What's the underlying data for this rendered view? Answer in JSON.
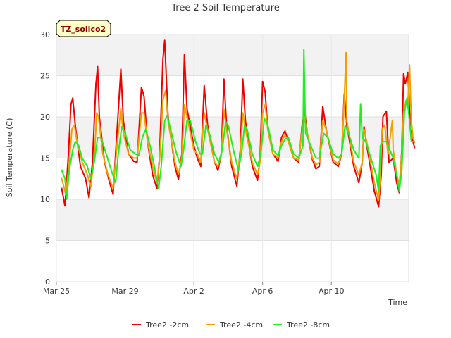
{
  "chart_data": {
    "type": "line",
    "title": "Tree 2 Soil Temperature",
    "xlabel": "Time",
    "ylabel": "Soil Temperature (C)",
    "tag_label": "TZ_soilco2",
    "ylim": [
      0,
      30
    ],
    "yticks": [
      0,
      5,
      10,
      15,
      20,
      25,
      30
    ],
    "xlim": [
      0,
      20.5
    ],
    "xticks": [
      {
        "value": 0,
        "label": "Mar 25"
      },
      {
        "value": 4,
        "label": "Mar 29"
      },
      {
        "value": 8,
        "label": "Apr 2"
      },
      {
        "value": 12,
        "label": "Apr 6"
      },
      {
        "value": 16,
        "label": "Apr 10"
      }
    ],
    "grid": true,
    "legend_position": "bottom",
    "series": [
      {
        "name": "Tree2 -2cm",
        "color": "#ee0000",
        "points": [
          [
            0.3,
            11.4
          ],
          [
            0.5,
            9.2
          ],
          [
            0.7,
            15.5
          ],
          [
            0.85,
            21.5
          ],
          [
            0.95,
            22.3
          ],
          [
            1.1,
            19.0
          ],
          [
            1.4,
            14.0
          ],
          [
            1.7,
            12.5
          ],
          [
            1.9,
            10.2
          ],
          [
            2.1,
            14.5
          ],
          [
            2.3,
            24.0
          ],
          [
            2.4,
            26.1
          ],
          [
            2.5,
            20.0
          ],
          [
            2.8,
            14.5
          ],
          [
            3.1,
            12.0
          ],
          [
            3.3,
            10.6
          ],
          [
            3.55,
            19.0
          ],
          [
            3.75,
            25.8
          ],
          [
            3.9,
            19.5
          ],
          [
            4.2,
            15.5
          ],
          [
            4.5,
            14.6
          ],
          [
            4.7,
            14.5
          ],
          [
            4.95,
            23.6
          ],
          [
            5.1,
            22.5
          ],
          [
            5.3,
            17.0
          ],
          [
            5.6,
            13.0
          ],
          [
            5.85,
            11.3
          ],
          [
            6.0,
            15.0
          ],
          [
            6.2,
            27.0
          ],
          [
            6.3,
            29.3
          ],
          [
            6.5,
            20.0
          ],
          [
            6.9,
            14.0
          ],
          [
            7.1,
            12.4
          ],
          [
            7.3,
            15.5
          ],
          [
            7.45,
            27.6
          ],
          [
            7.6,
            21.0
          ],
          [
            8.0,
            16.5
          ],
          [
            8.2,
            15.0
          ],
          [
            8.4,
            14.0
          ],
          [
            8.6,
            23.8
          ],
          [
            8.8,
            19.0
          ],
          [
            9.2,
            14.5
          ],
          [
            9.4,
            13.5
          ],
          [
            9.6,
            15.5
          ],
          [
            9.75,
            24.6
          ],
          [
            9.9,
            19.0
          ],
          [
            10.2,
            14.0
          ],
          [
            10.5,
            11.6
          ],
          [
            10.7,
            16.0
          ],
          [
            10.85,
            24.6
          ],
          [
            11.0,
            19.5
          ],
          [
            11.4,
            14.0
          ],
          [
            11.7,
            12.3
          ],
          [
            11.85,
            15.0
          ],
          [
            12.0,
            24.3
          ],
          [
            12.15,
            23.0
          ],
          [
            12.3,
            18.5
          ],
          [
            12.6,
            15.5
          ],
          [
            12.9,
            14.6
          ],
          [
            13.1,
            17.5
          ],
          [
            13.3,
            18.3
          ],
          [
            13.5,
            17.0
          ],
          [
            13.8,
            15.0
          ],
          [
            14.1,
            14.5
          ],
          [
            14.3,
            19.0
          ],
          [
            14.45,
            20.7
          ],
          [
            14.6,
            18.0
          ],
          [
            14.9,
            14.8
          ],
          [
            15.1,
            13.7
          ],
          [
            15.3,
            14.0
          ],
          [
            15.5,
            21.3
          ],
          [
            15.7,
            18.5
          ],
          [
            16.1,
            14.5
          ],
          [
            16.4,
            14.0
          ],
          [
            16.6,
            15.5
          ],
          [
            16.75,
            22.8
          ],
          [
            16.9,
            19.0
          ],
          [
            17.3,
            14.0
          ],
          [
            17.6,
            12.0
          ],
          [
            17.8,
            14.5
          ],
          [
            17.9,
            18.8
          ],
          [
            18.1,
            16.0
          ],
          [
            18.5,
            11.0
          ],
          [
            18.75,
            9.1
          ],
          [
            18.9,
            13.0
          ],
          [
            19.0,
            20.0
          ],
          [
            19.2,
            20.7
          ],
          [
            19.35,
            14.5
          ],
          [
            19.6,
            15.0
          ],
          [
            19.8,
            12.0
          ],
          [
            19.95,
            10.8
          ],
          [
            20.1,
            16.0
          ],
          [
            20.2,
            25.3
          ],
          [
            20.3,
            24.0
          ],
          [
            20.45,
            25.4
          ],
          [
            20.6,
            18.5
          ],
          [
            20.75,
            17.0
          ],
          [
            20.85,
            16.2
          ]
        ]
      },
      {
        "name": "Tree2 -4cm",
        "color": "#f0a000",
        "points": [
          [
            0.3,
            12.6
          ],
          [
            0.55,
            10.6
          ],
          [
            0.75,
            14.5
          ],
          [
            0.9,
            18.5
          ],
          [
            1.05,
            19.0
          ],
          [
            1.2,
            17.0
          ],
          [
            1.5,
            14.5
          ],
          [
            1.8,
            13.0
          ],
          [
            2.0,
            11.5
          ],
          [
            2.2,
            15.0
          ],
          [
            2.35,
            20.5
          ],
          [
            2.45,
            20.0
          ],
          [
            2.7,
            15.5
          ],
          [
            3.0,
            13.0
          ],
          [
            3.3,
            11.3
          ],
          [
            3.55,
            17.0
          ],
          [
            3.75,
            21.0
          ],
          [
            3.9,
            18.0
          ],
          [
            4.2,
            15.5
          ],
          [
            4.5,
            15.0
          ],
          [
            4.7,
            15.0
          ],
          [
            4.95,
            20.5
          ],
          [
            5.1,
            20.5
          ],
          [
            5.3,
            17.0
          ],
          [
            5.6,
            14.0
          ],
          [
            5.85,
            12.0
          ],
          [
            6.0,
            14.5
          ],
          [
            6.2,
            22.0
          ],
          [
            6.35,
            23.2
          ],
          [
            6.5,
            19.5
          ],
          [
            6.9,
            14.5
          ],
          [
            7.1,
            13.0
          ],
          [
            7.3,
            15.0
          ],
          [
            7.45,
            21.5
          ],
          [
            7.6,
            20.0
          ],
          [
            8.0,
            16.0
          ],
          [
            8.2,
            15.5
          ],
          [
            8.4,
            14.5
          ],
          [
            8.6,
            20.5
          ],
          [
            8.8,
            18.5
          ],
          [
            9.2,
            14.5
          ],
          [
            9.4,
            14.0
          ],
          [
            9.6,
            15.5
          ],
          [
            9.75,
            20.9
          ],
          [
            9.9,
            18.5
          ],
          [
            10.2,
            14.5
          ],
          [
            10.5,
            12.5
          ],
          [
            10.7,
            15.5
          ],
          [
            10.85,
            20.5
          ],
          [
            11.0,
            18.5
          ],
          [
            11.4,
            14.5
          ],
          [
            11.7,
            13.0
          ],
          [
            11.85,
            14.5
          ],
          [
            12.0,
            20.5
          ],
          [
            12.15,
            21.5
          ],
          [
            12.3,
            18.5
          ],
          [
            12.6,
            15.5
          ],
          [
            12.9,
            15.0
          ],
          [
            13.1,
            17.0
          ],
          [
            13.3,
            17.8
          ],
          [
            13.5,
            17.0
          ],
          [
            13.8,
            15.0
          ],
          [
            14.1,
            14.8
          ],
          [
            14.3,
            18.5
          ],
          [
            14.45,
            19.8
          ],
          [
            14.6,
            18.0
          ],
          [
            14.9,
            15.0
          ],
          [
            15.1,
            14.2
          ],
          [
            15.3,
            14.5
          ],
          [
            15.5,
            19.5
          ],
          [
            15.7,
            18.5
          ],
          [
            16.1,
            14.8
          ],
          [
            16.4,
            14.3
          ],
          [
            16.6,
            15.5
          ],
          [
            16.75,
            22.0
          ],
          [
            16.85,
            27.8
          ],
          [
            16.9,
            19.5
          ],
          [
            17.3,
            14.5
          ],
          [
            17.6,
            13.0
          ],
          [
            17.8,
            14.5
          ],
          [
            17.9,
            18.5
          ],
          [
            18.1,
            16.5
          ],
          [
            18.5,
            12.0
          ],
          [
            18.75,
            9.9
          ],
          [
            18.85,
            13.0
          ],
          [
            18.95,
            18.5
          ],
          [
            19.1,
            19.0
          ],
          [
            19.3,
            15.5
          ],
          [
            19.55,
            19.6
          ],
          [
            19.6,
            16.0
          ],
          [
            19.8,
            13.0
          ],
          [
            19.95,
            11.8
          ],
          [
            20.1,
            15.5
          ],
          [
            20.2,
            20.5
          ],
          [
            20.35,
            22.0
          ],
          [
            20.45,
            21.5
          ],
          [
            20.55,
            26.3
          ],
          [
            20.65,
            19.5
          ],
          [
            20.75,
            17.5
          ],
          [
            20.85,
            16.8
          ]
        ]
      },
      {
        "name": "Tree2 -8cm",
        "color": "#22ee22",
        "points": [
          [
            0.3,
            13.6
          ],
          [
            0.5,
            12.5
          ],
          [
            0.6,
            10.0
          ],
          [
            0.75,
            13.5
          ],
          [
            0.95,
            16.0
          ],
          [
            1.1,
            17.0
          ],
          [
            1.3,
            16.5
          ],
          [
            1.5,
            15.0
          ],
          [
            1.8,
            14.0
          ],
          [
            2.0,
            12.5
          ],
          [
            2.2,
            14.5
          ],
          [
            2.4,
            17.5
          ],
          [
            2.6,
            17.5
          ],
          [
            2.9,
            15.5
          ],
          [
            3.2,
            13.5
          ],
          [
            3.45,
            12.0
          ],
          [
            3.6,
            15.5
          ],
          [
            3.8,
            18.8
          ],
          [
            4.0,
            18.0
          ],
          [
            4.3,
            16.0
          ],
          [
            4.6,
            15.5
          ],
          [
            4.8,
            15.3
          ],
          [
            5.0,
            17.5
          ],
          [
            5.2,
            18.5
          ],
          [
            5.4,
            17.0
          ],
          [
            5.7,
            14.0
          ],
          [
            5.95,
            11.3
          ],
          [
            6.1,
            14.0
          ],
          [
            6.3,
            19.5
          ],
          [
            6.45,
            20.2
          ],
          [
            6.7,
            18.0
          ],
          [
            7.0,
            15.5
          ],
          [
            7.25,
            14.0
          ],
          [
            7.4,
            16.0
          ],
          [
            7.6,
            19.6
          ],
          [
            7.8,
            19.5
          ],
          [
            8.1,
            17.0
          ],
          [
            8.35,
            15.5
          ],
          [
            8.5,
            15.5
          ],
          [
            8.7,
            19.0
          ],
          [
            8.9,
            18.0
          ],
          [
            9.2,
            15.5
          ],
          [
            9.45,
            14.5
          ],
          [
            9.65,
            16.0
          ],
          [
            9.85,
            19.4
          ],
          [
            10.0,
            19.0
          ],
          [
            10.3,
            16.0
          ],
          [
            10.6,
            13.5
          ],
          [
            10.8,
            16.0
          ],
          [
            10.95,
            19.0
          ],
          [
            11.1,
            18.5
          ],
          [
            11.4,
            15.5
          ],
          [
            11.7,
            14.0
          ],
          [
            11.9,
            15.5
          ],
          [
            12.1,
            19.8
          ],
          [
            12.3,
            19.0
          ],
          [
            12.6,
            16.0
          ],
          [
            12.9,
            15.3
          ],
          [
            13.1,
            16.5
          ],
          [
            13.3,
            17.3
          ],
          [
            13.5,
            17.5
          ],
          [
            13.8,
            15.5
          ],
          [
            14.1,
            15.0
          ],
          [
            14.35,
            16.5
          ],
          [
            14.4,
            28.2
          ],
          [
            14.5,
            18.0
          ],
          [
            14.8,
            16.5
          ],
          [
            15.1,
            15.0
          ],
          [
            15.3,
            15.0
          ],
          [
            15.55,
            18.0
          ],
          [
            15.8,
            17.5
          ],
          [
            16.1,
            15.5
          ],
          [
            16.4,
            15.0
          ],
          [
            16.6,
            15.5
          ],
          [
            16.8,
            19.0
          ],
          [
            17.0,
            18.0
          ],
          [
            17.3,
            16.0
          ],
          [
            17.6,
            15.0
          ],
          [
            17.7,
            21.6
          ],
          [
            17.8,
            17.5
          ],
          [
            18.0,
            17.0
          ],
          [
            18.3,
            15.0
          ],
          [
            18.6,
            13.0
          ],
          [
            18.75,
            11.0
          ],
          [
            18.85,
            16.5
          ],
          [
            19.0,
            17.0
          ],
          [
            19.2,
            17.0
          ],
          [
            19.4,
            16.0
          ],
          [
            19.6,
            15.0
          ],
          [
            19.8,
            13.0
          ],
          [
            19.95,
            11.0
          ],
          [
            20.1,
            13.5
          ],
          [
            20.25,
            20.5
          ],
          [
            20.4,
            22.3
          ],
          [
            20.55,
            19.5
          ],
          [
            20.65,
            17.0
          ],
          [
            20.75,
            17.0
          ],
          [
            20.85,
            17.0
          ]
        ]
      }
    ]
  }
}
